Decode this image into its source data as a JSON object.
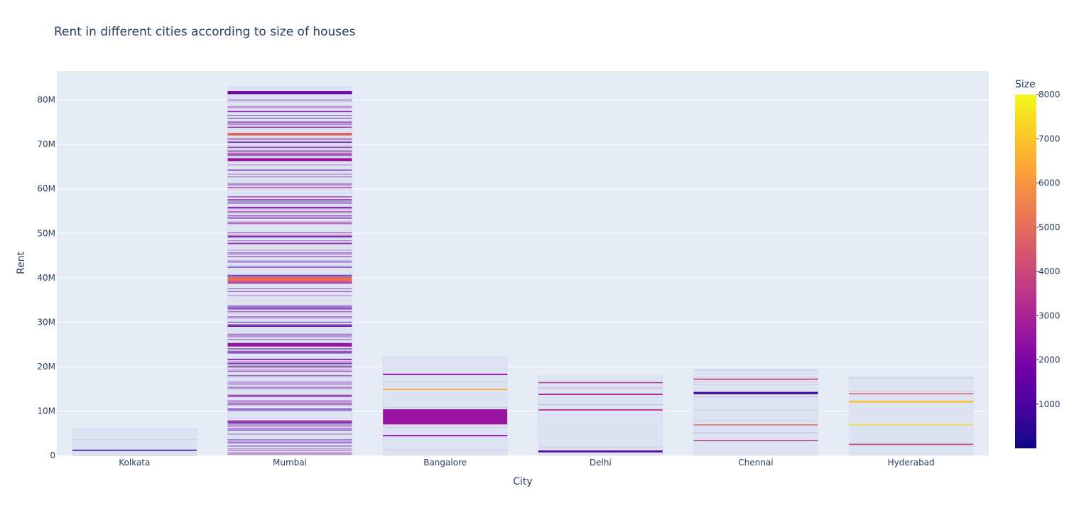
{
  "chart_data": {
    "type": "bar",
    "title": "Rent in different cities according to size of houses",
    "xlabel": "City",
    "ylabel": "Rent",
    "categories": [
      "Kolkata",
      "Mumbai",
      "Bangalore",
      "Delhi",
      "Chennai",
      "Hyderabad"
    ],
    "values": [
      6000000,
      83000000,
      22200000,
      17900000,
      19300000,
      17800000
    ],
    "ylim": [
      0,
      86500000
    ],
    "y_ticks": [
      {
        "value": 0,
        "label": "0"
      },
      {
        "value": 10000000,
        "label": "10M"
      },
      {
        "value": 20000000,
        "label": "20M"
      },
      {
        "value": 30000000,
        "label": "30M"
      },
      {
        "value": 40000000,
        "label": "40M"
      },
      {
        "value": 50000000,
        "label": "50M"
      },
      {
        "value": 60000000,
        "label": "60M"
      },
      {
        "value": 70000000,
        "label": "70M"
      },
      {
        "value": 80000000,
        "label": "80M"
      }
    ],
    "color_by": "Size",
    "colorbar": {
      "title": "Size",
      "range": [
        0,
        8000
      ],
      "ticks": [
        1000,
        2000,
        3000,
        4000,
        5000,
        6000,
        7000,
        8000
      ],
      "colorscale": [
        "#0d0887",
        "#46039f",
        "#7201a8",
        "#9c179e",
        "#bd3786",
        "#d8576b",
        "#ed7953",
        "#fb9f3a",
        "#fdca26",
        "#f0f921"
      ]
    },
    "highlighted_segments": [
      {
        "city": "Kolkata",
        "rent_start": 1100000,
        "rent_end": 1300000,
        "size": 400
      },
      {
        "city": "Mumbai",
        "rent_start": 39100000,
        "rent_end": 40200000,
        "size": 5000
      },
      {
        "city": "Mumbai",
        "rent_start": 72000000,
        "rent_end": 72600000,
        "size": 4800
      },
      {
        "city": "Mumbai",
        "rent_start": 66200000,
        "rent_end": 66900000,
        "size": 2600
      },
      {
        "city": "Mumbai",
        "rent_start": 24500000,
        "rent_end": 25300000,
        "size": 2600
      },
      {
        "city": "Mumbai",
        "rent_start": 81300000,
        "rent_end": 82000000,
        "size": 1700
      },
      {
        "city": "Bangalore",
        "rent_start": 7000000,
        "rent_end": 10400000,
        "size": 2600
      },
      {
        "city": "Bangalore",
        "rent_start": 14700000,
        "rent_end": 15000000,
        "size": 6500
      },
      {
        "city": "Bangalore",
        "rent_start": 18100000,
        "rent_end": 18400000,
        "size": 2400
      },
      {
        "city": "Bangalore",
        "rent_start": 4300000,
        "rent_end": 4600000,
        "size": 2400
      },
      {
        "city": "Delhi",
        "rent_start": 10100000,
        "rent_end": 10400000,
        "size": 3600
      },
      {
        "city": "Delhi",
        "rent_start": 13600000,
        "rent_end": 13900000,
        "size": 3000
      },
      {
        "city": "Delhi",
        "rent_start": 16300000,
        "rent_end": 16500000,
        "size": 3300
      },
      {
        "city": "Delhi",
        "rent_start": 700000,
        "rent_end": 1100000,
        "size": 1200
      },
      {
        "city": "Chennai",
        "rent_start": 13800000,
        "rent_end": 14300000,
        "size": 800
      },
      {
        "city": "Chennai",
        "rent_start": 17000000,
        "rent_end": 17300000,
        "size": 4000
      },
      {
        "city": "Chennai",
        "rent_start": 6800000,
        "rent_end": 7000000,
        "size": 4800
      },
      {
        "city": "Chennai",
        "rent_start": 3300000,
        "rent_end": 3500000,
        "size": 3500
      },
      {
        "city": "Hyderabad",
        "rent_start": 11900000,
        "rent_end": 12300000,
        "size": 6900
      },
      {
        "city": "Hyderabad",
        "rent_start": 13800000,
        "rent_end": 14000000,
        "size": 4500
      },
      {
        "city": "Hyderabad",
        "rent_start": 2400000,
        "rent_end": 2600000,
        "size": 4000
      },
      {
        "city": "Hyderabad",
        "rent_start": 6800000,
        "rent_end": 7000000,
        "size": 7500
      }
    ],
    "grid": true,
    "legend": "colorbar-right"
  }
}
